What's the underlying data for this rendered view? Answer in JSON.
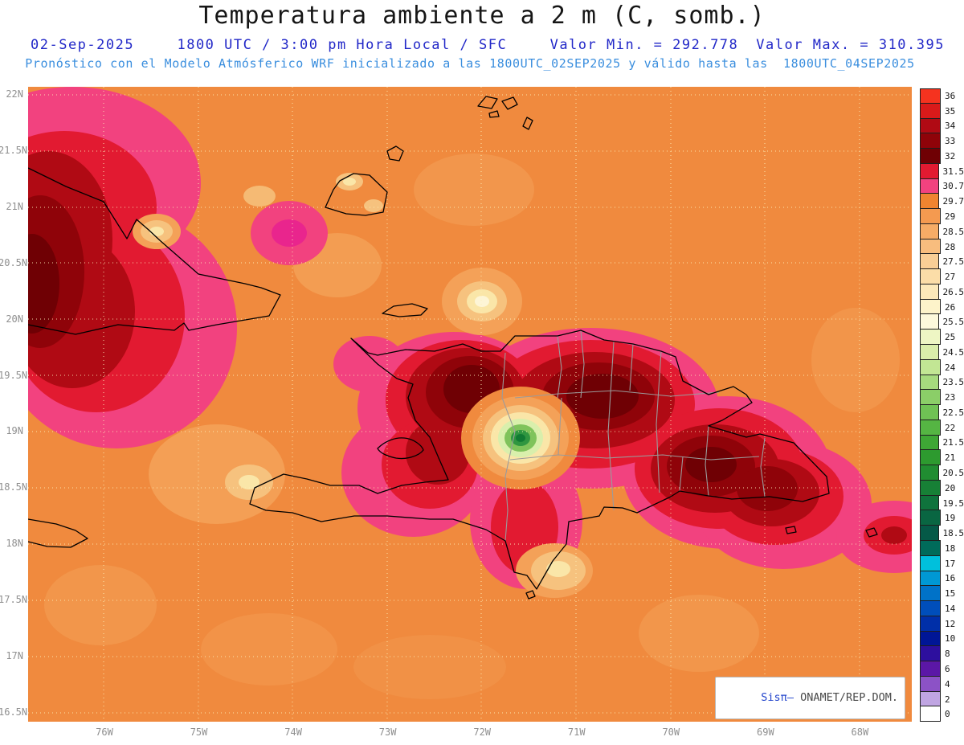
{
  "header": {
    "title": "Temperatura ambiente a 2 m (C, somb.)",
    "date": "02-Sep-2025",
    "time_line": "1800 UTC / 3:00 pm Hora Local / SFC",
    "min_text": "Valor Min. = 292.778",
    "max_text": "Valor Max. = 310.395",
    "forecast_line": "Pronóstico con el Modelo Atmósferico WRF inicializado a las 1800UTC_02SEP2025 y válido hasta las  1800UTC_04SEP2025"
  },
  "axes": {
    "lat_labels": [
      "22N",
      "21.5N",
      "21N",
      "20.5N",
      "20N",
      "19.5N",
      "19N",
      "18.5N",
      "18N",
      "17.5N",
      "17N",
      "16.5N"
    ],
    "lon_labels": [
      "76W",
      "75W",
      "74W",
      "73W",
      "72W",
      "71W",
      "70W",
      "69W",
      "68W"
    ]
  },
  "map": {
    "base_color": "#f08a3e",
    "hot_pink": "#f2427f",
    "hot_red": "#e21a31",
    "cool_green": "#2f9640",
    "gridline_color": "#fdf0b8"
  },
  "colorbar": {
    "entries": [
      {
        "label": "36",
        "color": "#f5331f"
      },
      {
        "label": "35",
        "color": "#d91a1a"
      },
      {
        "label": "34",
        "color": "#b00a14"
      },
      {
        "label": "33",
        "color": "#8f0309"
      },
      {
        "label": "32",
        "color": "#6f0004"
      },
      {
        "label": "31.5",
        "color": "#e21a31"
      },
      {
        "label": "30.7",
        "color": "#f2427f"
      },
      {
        "label": "29.7",
        "color": "#ef8430"
      },
      {
        "label": "29",
        "color": "#f49a50"
      },
      {
        "label": "28.5",
        "color": "#f6ac66"
      },
      {
        "label": "28",
        "color": "#f8bd7e"
      },
      {
        "label": "27.5",
        "color": "#f9ce96"
      },
      {
        "label": "27",
        "color": "#fbdda8"
      },
      {
        "label": "26.5",
        "color": "#fce9ba"
      },
      {
        "label": "26",
        "color": "#fdf3ca"
      },
      {
        "label": "25.5",
        "color": "#fdf9dc"
      },
      {
        "label": "25",
        "color": "#eef6c4"
      },
      {
        "label": "24.5",
        "color": "#daeeaa"
      },
      {
        "label": "24",
        "color": "#c2e694"
      },
      {
        "label": "23.5",
        "color": "#a6da7e"
      },
      {
        "label": "23",
        "color": "#8bce68"
      },
      {
        "label": "22.5",
        "color": "#6fc254"
      },
      {
        "label": "22",
        "color": "#55b543"
      },
      {
        "label": "21.5",
        "color": "#3ea735"
      },
      {
        "label": "21",
        "color": "#2d9a2f"
      },
      {
        "label": "20.5",
        "color": "#208d31"
      },
      {
        "label": "20",
        "color": "#178036"
      },
      {
        "label": "19.5",
        "color": "#0f733c"
      },
      {
        "label": "19",
        "color": "#096642"
      },
      {
        "label": "18.5",
        "color": "#055947"
      },
      {
        "label": "18",
        "color": "#006b5a"
      },
      {
        "label": "17",
        "color": "#00c0dc"
      },
      {
        "label": "16",
        "color": "#0098d4"
      },
      {
        "label": "15",
        "color": "#0072c8"
      },
      {
        "label": "14",
        "color": "#004eba"
      },
      {
        "label": "12",
        "color": "#002fa8"
      },
      {
        "label": "10",
        "color": "#001696"
      },
      {
        "label": "8",
        "color": "#2d0f9e"
      },
      {
        "label": "6",
        "color": "#5b17a6"
      },
      {
        "label": "4",
        "color": "#8c52c6"
      },
      {
        "label": "2",
        "color": "#c0a5e2"
      },
      {
        "label": "0",
        "color": "#ffffff"
      }
    ]
  },
  "watermark": {
    "brand": "Sisπ",
    "separator": "– ",
    "org": "ONAMET/REP.DOM."
  }
}
